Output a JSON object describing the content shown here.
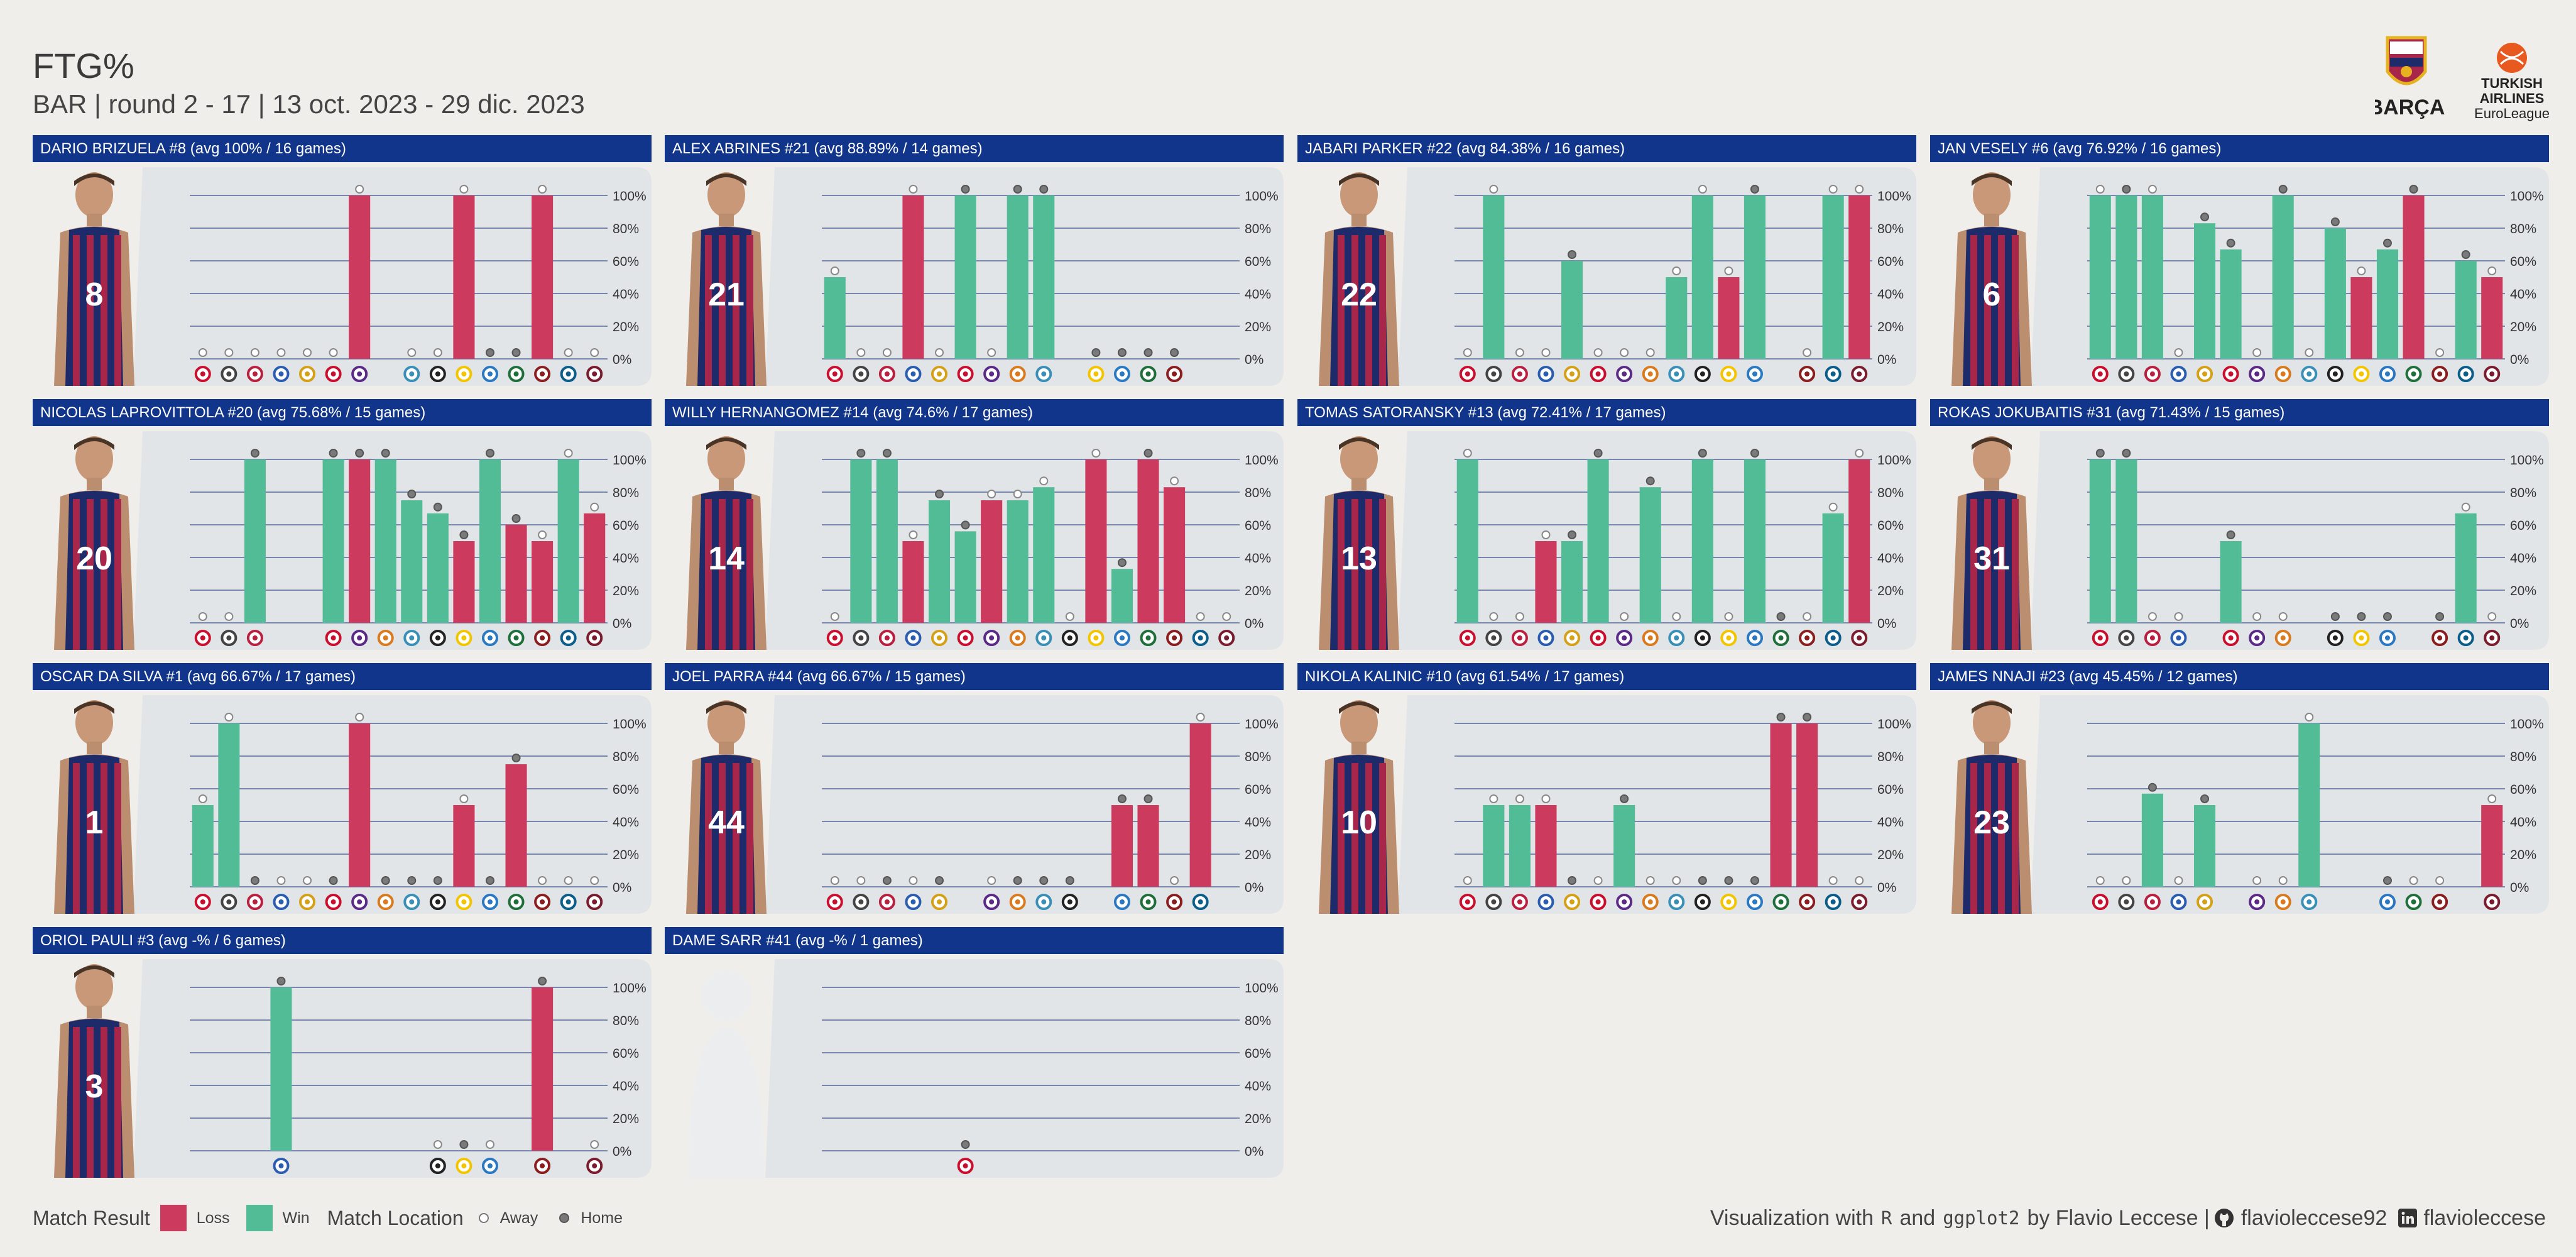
{
  "header": {
    "title": "FTG%",
    "subtitle": "BAR | round 2 - 17 | 13 oct. 2023 - 29 dic. 2023",
    "club_logo_text": "BARÇA",
    "league_logo_lines": [
      "TURKISH",
      "AIRLINES",
      "EuroLeague"
    ]
  },
  "colors": {
    "loss": "#cc3a5e",
    "win": "#52bc97",
    "header_bg": "#10358a",
    "panel_bg": "#e2e5e8",
    "jersey_blue": "#1e2b6b",
    "jersey_red": "#a8264a"
  },
  "chart_data": {
    "type": "bar",
    "y_tick_labels": [
      "0%",
      "20%",
      "40%",
      "60%",
      "80%",
      "100%"
    ],
    "ylim": [
      0,
      100
    ],
    "rounds": 16,
    "grid": "horizontal",
    "panels": [
      {
        "title": "DARIO BRIZUELA #8 (avg 100% / 16 games)",
        "number": "8",
        "photo": true,
        "bars": [
          0,
          0,
          0,
          0,
          0,
          0,
          100,
          null,
          0,
          0,
          100,
          0,
          0,
          100,
          0,
          0
        ],
        "results": [
          "W",
          "W",
          "W",
          "W",
          "W",
          "W",
          "L",
          null,
          "W",
          "W",
          "L",
          "W",
          "W",
          "L",
          "W",
          "W"
        ],
        "home": [
          false,
          false,
          false,
          false,
          false,
          false,
          false,
          null,
          false,
          false,
          false,
          true,
          true,
          false,
          false,
          false
        ]
      },
      {
        "title": "ALEX ABRINES #21 (avg 88.89% / 14 games)",
        "number": "21",
        "photo": true,
        "bars": [
          50,
          0,
          0,
          100,
          0,
          100,
          0,
          100,
          100,
          null,
          0,
          0,
          0,
          0,
          null,
          null
        ],
        "results": [
          "W",
          "W",
          "W",
          "L",
          "W",
          "W",
          "W",
          "W",
          "W",
          null,
          "W",
          "W",
          "W",
          "W",
          null,
          null
        ],
        "home": [
          false,
          false,
          false,
          false,
          false,
          true,
          false,
          true,
          true,
          null,
          true,
          true,
          true,
          true,
          null,
          null
        ]
      },
      {
        "title": "JABARI PARKER #22 (avg 84.38% / 16 games)",
        "number": "22",
        "photo": true,
        "bars": [
          0,
          100,
          0,
          0,
          60,
          0,
          0,
          0,
          50,
          100,
          50,
          100,
          null,
          0,
          100,
          100
        ],
        "results": [
          "W",
          "W",
          "W",
          "W",
          "W",
          "W",
          "W",
          "W",
          "W",
          "W",
          "L",
          "W",
          null,
          "W",
          "W",
          "L"
        ],
        "home": [
          false,
          false,
          false,
          false,
          true,
          false,
          false,
          false,
          false,
          false,
          false,
          true,
          null,
          false,
          false,
          false
        ]
      },
      {
        "title": "JAN VESELY #6 (avg 76.92% / 16 games)",
        "number": "6",
        "photo": true,
        "bars": [
          100,
          100,
          100,
          0,
          83,
          67,
          0,
          100,
          0,
          80,
          50,
          67,
          100,
          0,
          60,
          50
        ],
        "results": [
          "W",
          "W",
          "W",
          "W",
          "W",
          "W",
          "W",
          "W",
          "W",
          "W",
          "L",
          "W",
          "L",
          "W",
          "W",
          "L"
        ],
        "home": [
          false,
          true,
          false,
          false,
          true,
          true,
          false,
          true,
          false,
          true,
          false,
          true,
          true,
          false,
          true,
          false
        ]
      },
      {
        "title": "NICOLAS LAPROVITTOLA #20 (avg 75.68% / 15 games)",
        "number": "20",
        "photo": true,
        "bars": [
          0,
          0,
          100,
          null,
          null,
          100,
          100,
          100,
          75,
          67,
          50,
          100,
          60,
          50,
          100,
          67
        ],
        "results": [
          "W",
          "W",
          "W",
          null,
          null,
          "W",
          "L",
          "W",
          "W",
          "W",
          "L",
          "W",
          "L",
          "L",
          "W",
          "L"
        ],
        "home": [
          false,
          false,
          true,
          null,
          null,
          true,
          true,
          true,
          true,
          true,
          true,
          true,
          true,
          false,
          false,
          false
        ]
      },
      {
        "title": "WILLY HERNANGOMEZ #14 (avg 74.6% / 17 games)",
        "number": "14",
        "photo": true,
        "bars": [
          0,
          100,
          100,
          50,
          75,
          56,
          75,
          75,
          83,
          0,
          100,
          33,
          100,
          83,
          0,
          0
        ],
        "results": [
          "W",
          "W",
          "W",
          "L",
          "W",
          "W",
          "L",
          "W",
          "W",
          "W",
          "L",
          "W",
          "L",
          "L",
          "W",
          "W"
        ],
        "home": [
          false,
          true,
          true,
          false,
          true,
          true,
          false,
          false,
          false,
          false,
          false,
          true,
          true,
          false,
          false,
          false
        ]
      },
      {
        "title": "TOMAS SATORANSKY #13 (avg 72.41% / 17 games)",
        "number": "13",
        "photo": true,
        "bars": [
          100,
          0,
          0,
          50,
          50,
          100,
          0,
          83,
          0,
          100,
          0,
          100,
          0,
          0,
          67,
          100
        ],
        "results": [
          "W",
          "W",
          "W",
          "L",
          "W",
          "W",
          "W",
          "W",
          "W",
          "W",
          "W",
          "W",
          "W",
          "W",
          "W",
          "L"
        ],
        "home": [
          false,
          false,
          false,
          false,
          true,
          true,
          false,
          true,
          false,
          true,
          false,
          true,
          true,
          false,
          false,
          false
        ]
      },
      {
        "title": "ROKAS JOKUBAITIS #31 (avg 71.43% / 15 games)",
        "number": "31",
        "photo": true,
        "bars": [
          100,
          100,
          0,
          0,
          null,
          50,
          0,
          0,
          null,
          0,
          0,
          0,
          null,
          0,
          67,
          0
        ],
        "results": [
          "W",
          "W",
          "W",
          "W",
          null,
          "W",
          "W",
          "W",
          null,
          "W",
          "W",
          "W",
          null,
          "W",
          "W",
          "W"
        ],
        "home": [
          true,
          true,
          false,
          false,
          null,
          true,
          false,
          false,
          null,
          true,
          true,
          true,
          null,
          true,
          false,
          false
        ]
      },
      {
        "title": "OSCAR DA SILVA #1 (avg 66.67% / 17 games)",
        "number": "1",
        "photo": true,
        "bars": [
          50,
          100,
          0,
          0,
          0,
          0,
          100,
          0,
          0,
          0,
          50,
          0,
          75,
          0,
          0,
          0
        ],
        "results": [
          "W",
          "W",
          "W",
          "W",
          "W",
          "W",
          "L",
          "W",
          "W",
          "W",
          "L",
          "W",
          "L",
          "W",
          "W",
          "W"
        ],
        "home": [
          false,
          false,
          true,
          false,
          false,
          true,
          false,
          true,
          true,
          true,
          false,
          true,
          true,
          false,
          false,
          false
        ]
      },
      {
        "title": "JOEL PARRA #44 (avg 66.67% / 15 games)",
        "number": "44",
        "photo": true,
        "bars": [
          0,
          0,
          0,
          0,
          0,
          null,
          0,
          0,
          0,
          0,
          null,
          50,
          50,
          0,
          100,
          null
        ],
        "results": [
          "W",
          "W",
          "W",
          "W",
          "W",
          null,
          "W",
          "W",
          "W",
          "W",
          null,
          "L",
          "L",
          "W",
          "L",
          null
        ],
        "home": [
          false,
          false,
          true,
          false,
          true,
          null,
          false,
          true,
          true,
          true,
          null,
          true,
          true,
          false,
          false,
          null
        ]
      },
      {
        "title": "NIKOLA KALINIC #10 (avg 61.54% / 17 games)",
        "number": "10",
        "photo": true,
        "bars": [
          0,
          50,
          50,
          50,
          0,
          0,
          50,
          0,
          0,
          0,
          0,
          0,
          100,
          100,
          0,
          0
        ],
        "results": [
          "W",
          "W",
          "W",
          "L",
          "W",
          "W",
          "W",
          "W",
          "W",
          "W",
          "W",
          "W",
          "L",
          "L",
          "W",
          "W"
        ],
        "home": [
          false,
          false,
          false,
          false,
          true,
          false,
          true,
          false,
          false,
          true,
          true,
          true,
          true,
          true,
          false,
          false
        ]
      },
      {
        "title": "JAMES NNAJI #23 (avg 45.45% / 12 games)",
        "number": "23",
        "photo": true,
        "bars": [
          0,
          0,
          57,
          0,
          50,
          null,
          0,
          0,
          100,
          null,
          null,
          0,
          0,
          0,
          null,
          50
        ],
        "results": [
          "W",
          "W",
          "W",
          "W",
          "W",
          null,
          "W",
          "W",
          "W",
          null,
          null,
          "L",
          "W",
          "W",
          null,
          "L"
        ],
        "home": [
          false,
          false,
          true,
          false,
          true,
          null,
          false,
          false,
          false,
          null,
          null,
          true,
          false,
          false,
          null,
          false
        ]
      },
      {
        "title": "ORIOL PAULI #3 (avg -% / 6 games)",
        "number": "3",
        "photo": true,
        "bars": [
          null,
          null,
          null,
          100,
          null,
          null,
          null,
          null,
          null,
          0,
          0,
          0,
          null,
          100,
          null,
          0
        ],
        "results": [
          null,
          null,
          null,
          "W",
          null,
          null,
          null,
          null,
          null,
          "W",
          "W",
          "W",
          null,
          "L",
          null,
          "W"
        ],
        "home": [
          null,
          null,
          null,
          true,
          null,
          null,
          null,
          null,
          null,
          false,
          true,
          false,
          null,
          true,
          null,
          false
        ]
      },
      {
        "title": "DAME SARR #41 (avg -% / 1 games)",
        "number": "",
        "photo": false,
        "bars": [
          null,
          null,
          null,
          null,
          null,
          0,
          null,
          null,
          null,
          null,
          null,
          null,
          null,
          null,
          null,
          null
        ],
        "results": [
          null,
          null,
          null,
          null,
          null,
          "W",
          null,
          null,
          null,
          null,
          null,
          null,
          null,
          null,
          null,
          null
        ],
        "home": [
          null,
          null,
          null,
          null,
          null,
          true,
          null,
          null,
          null,
          null,
          null,
          null,
          null,
          null,
          null,
          null
        ]
      }
    ]
  },
  "legend": {
    "result_label": "Match Result",
    "loss_label": "Loss",
    "win_label": "Win",
    "location_label": "Match Location",
    "away_label": "Away",
    "home_label": "Home"
  },
  "credit": {
    "prefix": "Visualization with",
    "tool1": "R",
    "and": "and",
    "tool2": "ggplot2",
    "by": "by Flavio Leccese |",
    "github": "flavioleccese92",
    "linkedin": "flavioleccese"
  }
}
